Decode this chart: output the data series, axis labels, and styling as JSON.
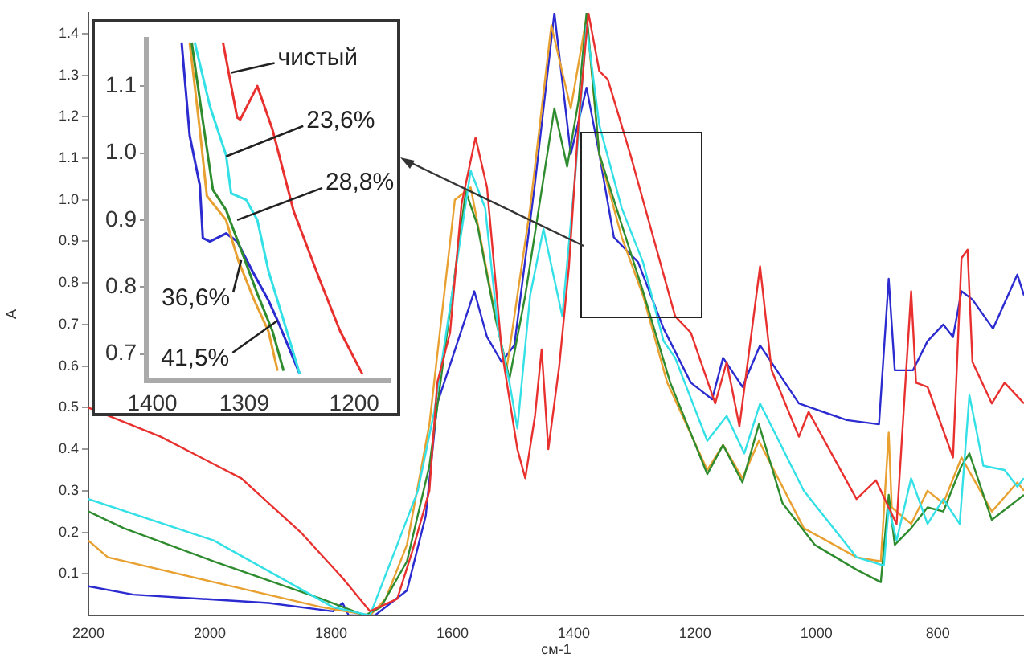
{
  "chart_data": [
    {
      "type": "line",
      "xlabel": "см-1",
      "ylabel": "A",
      "xlim": [
        2200,
        658
      ],
      "xticks": [
        2200,
        2000,
        1800,
        1600,
        1400,
        1200,
        1000,
        800
      ],
      "ylim": [
        0,
        1.45
      ],
      "yticks": [
        0.1,
        0.2,
        0.3,
        0.4,
        0.5,
        0.6,
        0.7,
        0.8,
        0.9,
        {
          "value": 1.0,
          "label": "1.0"
        },
        1.1,
        1.2,
        1.3,
        1.4
      ],
      "grid": false,
      "legend": false,
      "marker": "none",
      "line_style": "solid",
      "series": [
        {
          "color": "#e8312f",
          "x": [
            2200,
            2081,
            1948,
            1850,
            1781,
            1736,
            1691,
            1665,
            1638,
            1625,
            1604,
            1585,
            1562,
            1543,
            1519,
            1493,
            1480,
            1464,
            1453,
            1442,
            1424,
            1408,
            1392,
            1376,
            1358,
            1344,
            1307,
            1233,
            1207,
            1167,
            1148,
            1127,
            1093,
            1074,
            1029,
            1013,
            934,
            902,
            868,
            844,
            836,
            817,
            775,
            761,
            751,
            743,
            711,
            690,
            658
          ],
          "values": [
            0.5,
            0.43,
            0.33,
            0.2,
            0.09,
            0.01,
            0.04,
            0.16,
            0.3,
            0.56,
            0.68,
            0.99,
            1.15,
            1.03,
            0.64,
            0.4,
            0.33,
            0.48,
            0.64,
            0.4,
            0.6,
            0.84,
            1.19,
            1.45,
            1.31,
            1.29,
            1.11,
            0.72,
            0.68,
            0.51,
            0.61,
            0.455,
            0.84,
            0.59,
            0.43,
            0.49,
            0.28,
            0.325,
            0.22,
            0.78,
            0.56,
            0.55,
            0.38,
            0.86,
            0.88,
            0.61,
            0.51,
            0.56,
            0.51
          ]
        },
        {
          "color": "#33e0e6",
          "x": [
            2200,
            1993,
            1797,
            1736,
            1691,
            1657,
            1630,
            1570,
            1546,
            1525,
            1506,
            1493,
            1472,
            1450,
            1419,
            1397,
            1379,
            1358,
            1321,
            1286,
            1252,
            1233,
            1180,
            1148,
            1119,
            1093,
            1021,
            934,
            889,
            881,
            868,
            844,
            817,
            791,
            764,
            748,
            725,
            690,
            669,
            658
          ],
          "values": [
            0.28,
            0.18,
            0.02,
            0.0,
            0.17,
            0.3,
            0.49,
            1.07,
            0.98,
            0.69,
            0.56,
            0.45,
            0.77,
            0.93,
            0.72,
            1.07,
            1.42,
            1.18,
            0.98,
            0.85,
            0.66,
            0.62,
            0.42,
            0.48,
            0.39,
            0.51,
            0.3,
            0.14,
            0.12,
            0.26,
            0.18,
            0.33,
            0.22,
            0.28,
            0.22,
            0.53,
            0.36,
            0.35,
            0.31,
            0.33
          ]
        },
        {
          "color": "#2e8b2e",
          "x": [
            2200,
            2142,
            1993,
            1816,
            1744,
            1718,
            1675,
            1638,
            1578,
            1559,
            1530,
            1506,
            1480,
            1432,
            1411,
            1392,
            1379,
            1358,
            1321,
            1286,
            1241,
            1180,
            1154,
            1122,
            1095,
            1056,
            1003,
            934,
            894,
            881,
            871,
            844,
            817,
            791,
            761,
            748,
            711,
            658
          ],
          "values": [
            0.25,
            0.21,
            0.13,
            0.04,
            0.0,
            0.02,
            0.13,
            0.36,
            1.02,
            0.94,
            0.72,
            0.57,
            0.77,
            1.22,
            1.08,
            1.24,
            1.45,
            1.11,
            0.94,
            0.78,
            0.56,
            0.34,
            0.41,
            0.32,
            0.46,
            0.27,
            0.17,
            0.11,
            0.08,
            0.29,
            0.17,
            0.21,
            0.26,
            0.25,
            0.36,
            0.39,
            0.23,
            0.29
          ]
        },
        {
          "color": "#e8a030",
          "x": [
            2200,
            2168,
            1993,
            1816,
            1736,
            1710,
            1675,
            1638,
            1596,
            1570,
            1533,
            1511,
            1472,
            1437,
            1405,
            1379,
            1358,
            1321,
            1286,
            1246,
            1180,
            1154,
            1122,
            1095,
            1021,
            934,
            894,
            881,
            876,
            844,
            817,
            791,
            761,
            711,
            669,
            658
          ],
          "values": [
            0.18,
            0.14,
            0.08,
            0.02,
            0.0,
            0.04,
            0.17,
            0.46,
            1.0,
            1.03,
            0.75,
            0.59,
            0.98,
            1.42,
            1.22,
            1.44,
            1.11,
            0.91,
            0.77,
            0.56,
            0.35,
            0.41,
            0.33,
            0.42,
            0.21,
            0.14,
            0.13,
            0.44,
            0.26,
            0.22,
            0.3,
            0.27,
            0.38,
            0.25,
            0.32,
            0.3
          ]
        },
        {
          "color": "#2b2bd0",
          "x": [
            2200,
            2126,
            1903,
            1797,
            1781,
            1771,
            1728,
            1675,
            1644,
            1625,
            1564,
            1543,
            1519,
            1498,
            1464,
            1432,
            1405,
            1379,
            1358,
            1334,
            1294,
            1252,
            1207,
            1172,
            1154,
            1122,
            1093,
            1029,
            950,
            897,
            881,
            871,
            841,
            817,
            791,
            775,
            761,
            743,
            709,
            669,
            658
          ],
          "values": [
            0.07,
            0.05,
            0.03,
            0.01,
            0.03,
            0.0,
            0.0,
            0.06,
            0.24,
            0.51,
            0.78,
            0.67,
            0.61,
            0.65,
            1.04,
            1.45,
            1.11,
            1.27,
            1.11,
            0.91,
            0.85,
            0.69,
            0.56,
            0.52,
            0.62,
            0.55,
            0.65,
            0.51,
            0.47,
            0.46,
            0.81,
            0.59,
            0.59,
            0.66,
            0.7,
            0.67,
            0.78,
            0.76,
            0.69,
            0.82,
            0.77
          ]
        }
      ]
    },
    {
      "type": "line",
      "xlim": [
        1406,
        1164
      ],
      "xticks": [
        1400,
        1309,
        1200
      ],
      "ylim": [
        0.66,
        1.17
      ],
      "yticks": [
        0.7,
        0.8,
        0.9,
        {
          "value": 1.0,
          "label": "1.0"
        },
        1.1
      ],
      "grid": false,
      "legend": false,
      "marker": "none",
      "line_style": "solid",
      "annotations": [
        {
          "text": "чистый",
          "x": 1322,
          "y": 1.12
        },
        {
          "text": "23,6%",
          "x": 1327,
          "y": 0.995
        },
        {
          "text": "28,8%",
          "x": 1316,
          "y": 0.9
        },
        {
          "text": "36,6%",
          "x": 1312,
          "y": 0.84
        },
        {
          "text": "41,5%",
          "x": 1276,
          "y": 0.75
        }
      ],
      "series": [
        {
          "color": "#e8312f",
          "x": [
            1330,
            1316,
            1313,
            1296,
            1281,
            1260,
            1234,
            1214,
            1192
          ],
          "values": [
            1.165,
            1.053,
            1.05,
            1.1,
            1.035,
            0.913,
            0.81,
            0.734,
            0.67
          ]
        },
        {
          "color": "#33e0e6",
          "x": [
            1358,
            1343,
            1327,
            1322,
            1307,
            1296,
            1285,
            1270,
            1254
          ],
          "values": [
            1.165,
            1.07,
            0.997,
            0.94,
            0.93,
            0.9,
            0.824,
            0.75,
            0.67
          ]
        },
        {
          "color": "#2e8b2e",
          "x": [
            1361,
            1350,
            1340,
            1327,
            1312,
            1296,
            1281,
            1270
          ],
          "values": [
            1.165,
            1.048,
            0.945,
            0.915,
            0.855,
            0.79,
            0.734,
            0.675
          ]
        },
        {
          "color": "#e8a030",
          "x": [
            1363,
            1353,
            1346,
            1327,
            1315,
            1299,
            1285,
            1276
          ],
          "values": [
            1.165,
            1.035,
            0.936,
            0.9,
            0.84,
            0.78,
            0.734,
            0.675
          ]
        },
        {
          "color": "#2b2bd0",
          "x": [
            1371,
            1363,
            1353,
            1350,
            1343,
            1327,
            1316,
            1301,
            1285,
            1276,
            1254
          ],
          "values": [
            1.165,
            1.026,
            0.952,
            0.873,
            0.868,
            0.88,
            0.868,
            0.824,
            0.78,
            0.75,
            0.67
          ]
        }
      ]
    }
  ]
}
